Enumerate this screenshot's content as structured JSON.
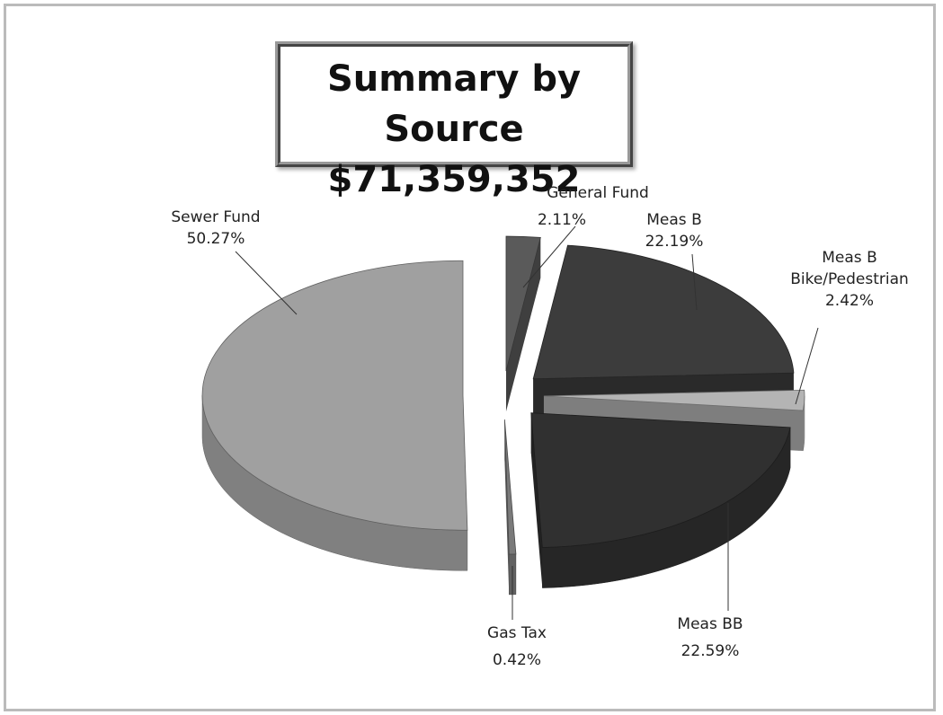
{
  "chart_data": {
    "type": "pie",
    "title": "Summary by Source",
    "subtitle": "$71,359,352",
    "categories": [
      "General Fund",
      "Meas B",
      "Meas B Bike/Pedestrian",
      "Meas BB",
      "Gas Tax",
      "Sewer Fund"
    ],
    "values": [
      2.11,
      22.19,
      2.42,
      22.59,
      0.42,
      50.27
    ],
    "value_labels": [
      "2.11%",
      "22.19%",
      "2.42%",
      "22.59%",
      "0.42%",
      "50.27%"
    ],
    "colors": [
      "#5a5a5a",
      "#3c3c3c",
      "#b4b4b4",
      "#303030",
      "#7a7a7a",
      "#a0a0a0"
    ]
  }
}
